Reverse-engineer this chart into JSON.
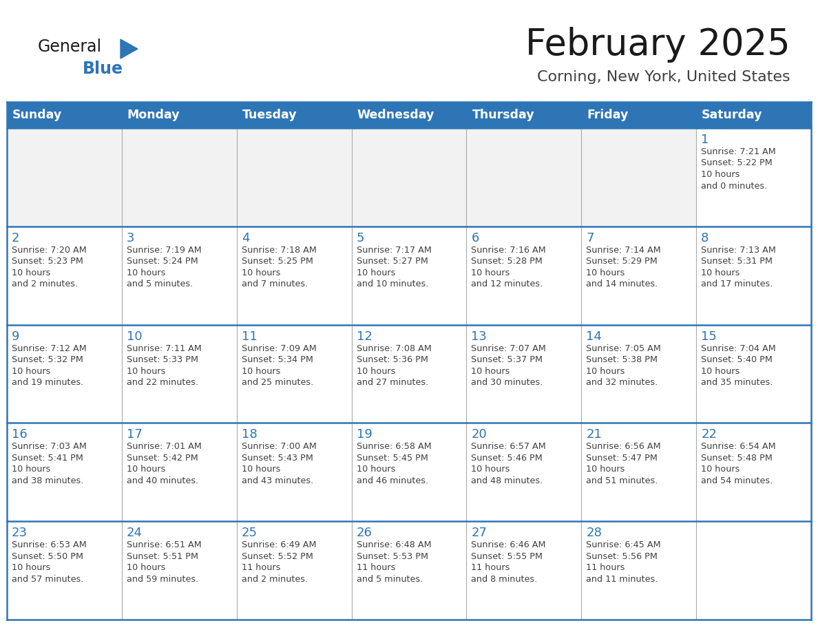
{
  "title": "February 2025",
  "subtitle": "Corning, New York, United States",
  "days_of_week": [
    "Sunday",
    "Monday",
    "Tuesday",
    "Wednesday",
    "Thursday",
    "Friday",
    "Saturday"
  ],
  "header_bg": "#2E75B6",
  "header_text": "#FFFFFF",
  "cell_bg": "#FFFFFF",
  "empty_row_bg": "#F2F2F2",
  "border_color": "#2E75B6",
  "day_num_color": "#2E75B6",
  "cell_text_color": "#404040",
  "title_color": "#1a1a1a",
  "subtitle_color": "#404040",
  "logo_general_color": "#1a1a1a",
  "logo_blue_color": "#2E75B6",
  "grid_line_color": "#AAAAAA",
  "calendar_data": [
    [
      null,
      null,
      null,
      null,
      null,
      null,
      {
        "day": 1,
        "sunrise": "7:21 AM",
        "sunset": "5:22 PM",
        "daylight": "10 hours\nand 0 minutes."
      }
    ],
    [
      {
        "day": 2,
        "sunrise": "7:20 AM",
        "sunset": "5:23 PM",
        "daylight": "10 hours\nand 2 minutes."
      },
      {
        "day": 3,
        "sunrise": "7:19 AM",
        "sunset": "5:24 PM",
        "daylight": "10 hours\nand 5 minutes."
      },
      {
        "day": 4,
        "sunrise": "7:18 AM",
        "sunset": "5:25 PM",
        "daylight": "10 hours\nand 7 minutes."
      },
      {
        "day": 5,
        "sunrise": "7:17 AM",
        "sunset": "5:27 PM",
        "daylight": "10 hours\nand 10 minutes."
      },
      {
        "day": 6,
        "sunrise": "7:16 AM",
        "sunset": "5:28 PM",
        "daylight": "10 hours\nand 12 minutes."
      },
      {
        "day": 7,
        "sunrise": "7:14 AM",
        "sunset": "5:29 PM",
        "daylight": "10 hours\nand 14 minutes."
      },
      {
        "day": 8,
        "sunrise": "7:13 AM",
        "sunset": "5:31 PM",
        "daylight": "10 hours\nand 17 minutes."
      }
    ],
    [
      {
        "day": 9,
        "sunrise": "7:12 AM",
        "sunset": "5:32 PM",
        "daylight": "10 hours\nand 19 minutes."
      },
      {
        "day": 10,
        "sunrise": "7:11 AM",
        "sunset": "5:33 PM",
        "daylight": "10 hours\nand 22 minutes."
      },
      {
        "day": 11,
        "sunrise": "7:09 AM",
        "sunset": "5:34 PM",
        "daylight": "10 hours\nand 25 minutes."
      },
      {
        "day": 12,
        "sunrise": "7:08 AM",
        "sunset": "5:36 PM",
        "daylight": "10 hours\nand 27 minutes."
      },
      {
        "day": 13,
        "sunrise": "7:07 AM",
        "sunset": "5:37 PM",
        "daylight": "10 hours\nand 30 minutes."
      },
      {
        "day": 14,
        "sunrise": "7:05 AM",
        "sunset": "5:38 PM",
        "daylight": "10 hours\nand 32 minutes."
      },
      {
        "day": 15,
        "sunrise": "7:04 AM",
        "sunset": "5:40 PM",
        "daylight": "10 hours\nand 35 minutes."
      }
    ],
    [
      {
        "day": 16,
        "sunrise": "7:03 AM",
        "sunset": "5:41 PM",
        "daylight": "10 hours\nand 38 minutes."
      },
      {
        "day": 17,
        "sunrise": "7:01 AM",
        "sunset": "5:42 PM",
        "daylight": "10 hours\nand 40 minutes."
      },
      {
        "day": 18,
        "sunrise": "7:00 AM",
        "sunset": "5:43 PM",
        "daylight": "10 hours\nand 43 minutes."
      },
      {
        "day": 19,
        "sunrise": "6:58 AM",
        "sunset": "5:45 PM",
        "daylight": "10 hours\nand 46 minutes."
      },
      {
        "day": 20,
        "sunrise": "6:57 AM",
        "sunset": "5:46 PM",
        "daylight": "10 hours\nand 48 minutes."
      },
      {
        "day": 21,
        "sunrise": "6:56 AM",
        "sunset": "5:47 PM",
        "daylight": "10 hours\nand 51 minutes."
      },
      {
        "day": 22,
        "sunrise": "6:54 AM",
        "sunset": "5:48 PM",
        "daylight": "10 hours\nand 54 minutes."
      }
    ],
    [
      {
        "day": 23,
        "sunrise": "6:53 AM",
        "sunset": "5:50 PM",
        "daylight": "10 hours\nand 57 minutes."
      },
      {
        "day": 24,
        "sunrise": "6:51 AM",
        "sunset": "5:51 PM",
        "daylight": "10 hours\nand 59 minutes."
      },
      {
        "day": 25,
        "sunrise": "6:49 AM",
        "sunset": "5:52 PM",
        "daylight": "11 hours\nand 2 minutes."
      },
      {
        "day": 26,
        "sunrise": "6:48 AM",
        "sunset": "5:53 PM",
        "daylight": "11 hours\nand 5 minutes."
      },
      {
        "day": 27,
        "sunrise": "6:46 AM",
        "sunset": "5:55 PM",
        "daylight": "11 hours\nand 8 minutes."
      },
      {
        "day": 28,
        "sunrise": "6:45 AM",
        "sunset": "5:56 PM",
        "daylight": "11 hours\nand 11 minutes."
      },
      null
    ]
  ]
}
